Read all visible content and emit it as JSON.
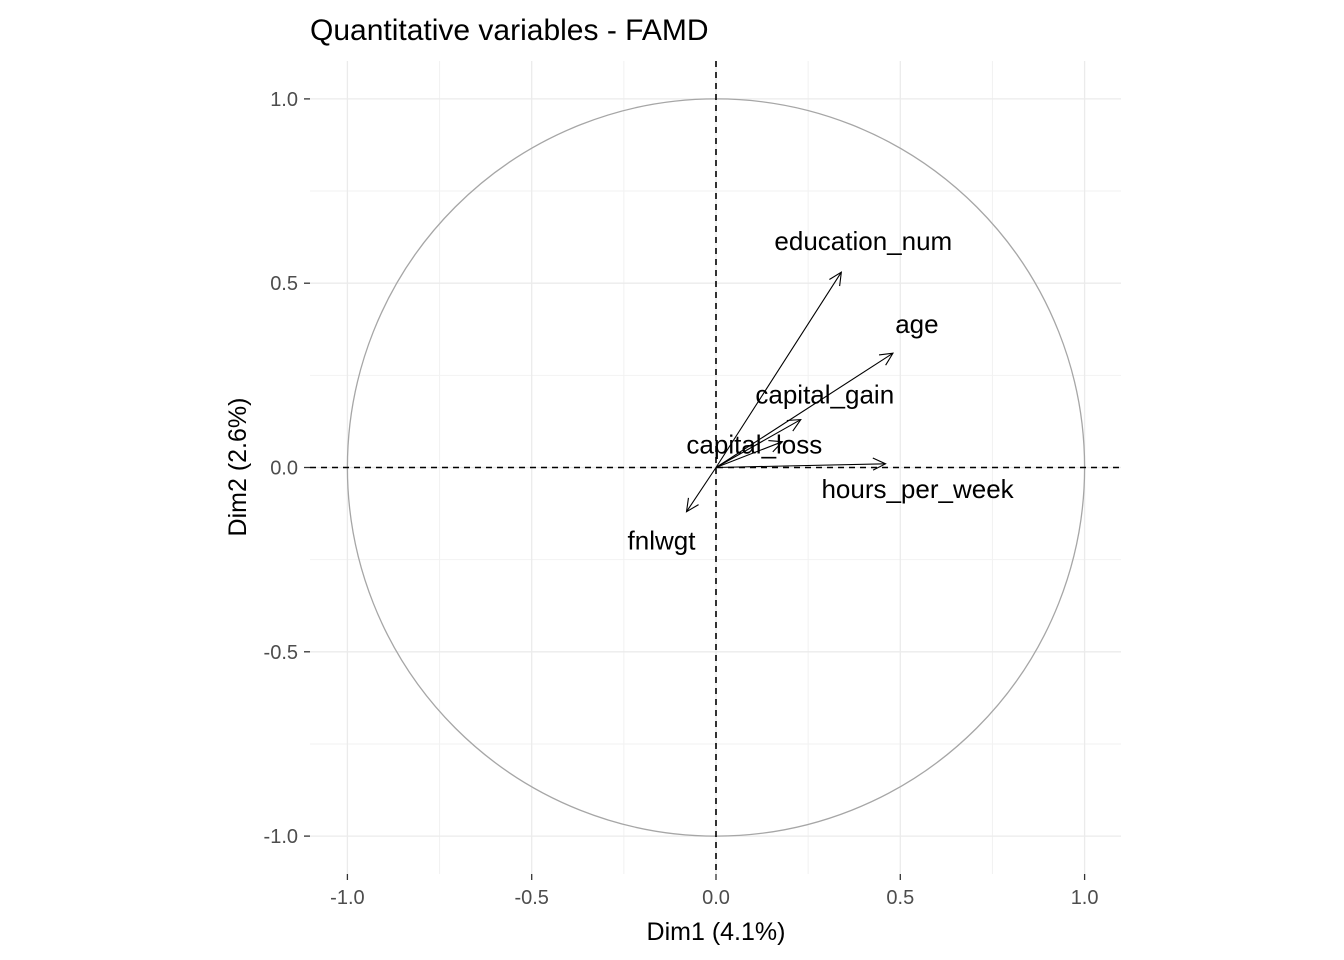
{
  "chart_data": {
    "type": "scatter",
    "title": "Quantitative variables - FAMD",
    "xlabel": "Dim1 (4.1%)",
    "ylabel": "Dim2 (2.6%)",
    "xlim": [
      -1.1,
      1.1
    ],
    "ylim": [
      -1.1,
      1.1
    ],
    "x_ticks": [
      "-1.0",
      "-0.5",
      "0.0",
      "0.5",
      "1.0"
    ],
    "y_ticks": [
      "1.0",
      "0.5",
      "0.0",
      "-0.5",
      "-1.0"
    ],
    "grid": true,
    "correlation_circle": true,
    "variables": [
      {
        "name": "education_num",
        "x": 0.34,
        "y": 0.53
      },
      {
        "name": "age",
        "x": 0.48,
        "y": 0.31
      },
      {
        "name": "capital_gain",
        "x": 0.23,
        "y": 0.13
      },
      {
        "name": "capital_loss",
        "x": 0.18,
        "y": 0.07
      },
      {
        "name": "hours_per_week",
        "x": 0.46,
        "y": 0.01
      },
      {
        "name": "fnlwgt",
        "x": -0.08,
        "y": -0.12
      }
    ],
    "colors": {
      "arrows": "#000000",
      "circle": "#a6a6a6",
      "grid_major": "#ebebeb",
      "grid_minor": "#f2f2f2"
    }
  }
}
